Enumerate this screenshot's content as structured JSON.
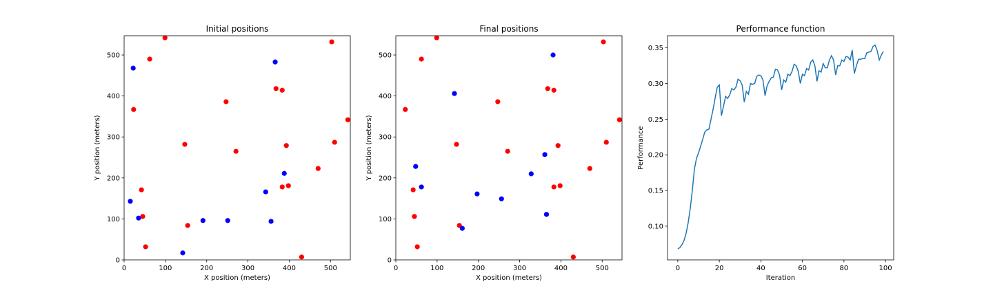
{
  "chart_data": [
    {
      "type": "scatter",
      "title": "Initial positions",
      "xlabel": "X position (meters)",
      "ylabel": "Y position (meters)",
      "xlim": [
        0,
        548
      ],
      "ylim": [
        0,
        547
      ],
      "xticks": [
        0,
        100,
        200,
        300,
        400,
        500
      ],
      "yticks": [
        0,
        100,
        200,
        300,
        400,
        500
      ],
      "series": [
        {
          "color": "red",
          "x": [
            99,
            62,
            23,
            247,
            368,
            383,
            503,
            542,
            147,
            271,
            393,
            510,
            470,
            42,
            383,
            398,
            45,
            154,
            52,
            430
          ],
          "values": [
            542,
            490,
            367,
            386,
            418,
            414,
            532,
            342,
            282,
            265,
            279,
            287,
            223,
            171,
            178,
            181,
            106,
            84,
            32,
            7
          ]
        },
        {
          "color": "blue",
          "x": [
            22,
            366,
            15,
            35,
            191,
            251,
            356,
            343,
            388,
            142
          ],
          "values": [
            468,
            483,
            143,
            102,
            96,
            96,
            94,
            166,
            211,
            17
          ]
        }
      ]
    },
    {
      "type": "scatter",
      "title": "Final positions",
      "xlabel": "X position (meters)",
      "ylabel": "Y position (meters)",
      "xlim": [
        0,
        548
      ],
      "ylim": [
        0,
        547
      ],
      "xticks": [
        0,
        100,
        200,
        300,
        400,
        500
      ],
      "yticks": [
        0,
        100,
        200,
        300,
        400,
        500
      ],
      "series": [
        {
          "color": "red",
          "x": [
            99,
            62,
            23,
            247,
            368,
            383,
            503,
            542,
            147,
            271,
            393,
            510,
            470,
            42,
            383,
            398,
            45,
            154,
            52,
            430
          ],
          "values": [
            542,
            490,
            367,
            386,
            418,
            414,
            532,
            342,
            282,
            265,
            279,
            287,
            223,
            171,
            178,
            181,
            106,
            84,
            32,
            7
          ]
        },
        {
          "color": "blue",
          "x": [
            142,
            381,
            48,
            62,
            197,
            256,
            328,
            361,
            365,
            161
          ],
          "values": [
            406,
            500,
            228,
            178,
            161,
            149,
            210,
            257,
            111,
            77
          ]
        }
      ]
    },
    {
      "type": "line",
      "title": "Performance function",
      "xlabel": "Iteration",
      "ylabel": "Performance",
      "xlim": [
        -4.95,
        103.95
      ],
      "ylim": [
        0.0527,
        0.367
      ],
      "xticks": [
        0,
        20,
        40,
        60,
        80,
        100
      ],
      "yticks": [
        {
          "value": 0.1,
          "label": "0.10"
        },
        {
          "value": 0.15,
          "label": "0.15"
        },
        {
          "value": 0.2,
          "label": "0.20"
        },
        {
          "value": 0.25,
          "label": "0.25"
        },
        {
          "value": 0.3,
          "label": "0.30"
        },
        {
          "value": 0.35,
          "label": "0.35"
        }
      ],
      "series": [
        {
          "color": "#1f77b4",
          "x": [
            0,
            1,
            2,
            3,
            4,
            5,
            6,
            7,
            8,
            9,
            10,
            11,
            12,
            13,
            14,
            15,
            16,
            17,
            18,
            19,
            20,
            21,
            22,
            23,
            24,
            25,
            26,
            27,
            28,
            29,
            30,
            31,
            32,
            33,
            34,
            35,
            36,
            37,
            38,
            39,
            40,
            41,
            42,
            43,
            44,
            45,
            46,
            47,
            48,
            49,
            50,
            51,
            52,
            53,
            54,
            55,
            56,
            57,
            58,
            59,
            60,
            61,
            62,
            63,
            64,
            65,
            66,
            67,
            68,
            69,
            70,
            71,
            72,
            73,
            74,
            75,
            76,
            77,
            78,
            79,
            80,
            81,
            82,
            83,
            84,
            85,
            86,
            87,
            88,
            89,
            90,
            91,
            92,
            93,
            94,
            95,
            96,
            97,
            98,
            99
          ],
          "values": [
            0.068,
            0.07,
            0.074,
            0.08,
            0.09,
            0.105,
            0.125,
            0.15,
            0.18,
            0.195,
            0.203,
            0.212,
            0.222,
            0.232,
            0.235,
            0.236,
            0.25,
            0.264,
            0.28,
            0.295,
            0.298,
            0.255,
            0.268,
            0.282,
            0.279,
            0.284,
            0.293,
            0.291,
            0.295,
            0.306,
            0.304,
            0.298,
            0.274,
            0.289,
            0.285,
            0.3,
            0.299,
            0.3,
            0.31,
            0.312,
            0.311,
            0.305,
            0.283,
            0.297,
            0.303,
            0.308,
            0.309,
            0.32,
            0.319,
            0.312,
            0.291,
            0.305,
            0.302,
            0.313,
            0.311,
            0.317,
            0.327,
            0.325,
            0.317,
            0.3,
            0.313,
            0.311,
            0.321,
            0.319,
            0.33,
            0.333,
            0.325,
            0.303,
            0.318,
            0.316,
            0.328,
            0.322,
            0.322,
            0.333,
            0.339,
            0.333,
            0.312,
            0.325,
            0.325,
            0.333,
            0.331,
            0.338,
            0.337,
            0.333,
            0.347,
            0.314,
            0.325,
            0.334,
            0.334,
            0.335,
            0.335,
            0.343,
            0.344,
            0.345,
            0.352,
            0.354,
            0.346,
            0.333,
            0.34,
            0.345
          ]
        }
      ]
    }
  ]
}
